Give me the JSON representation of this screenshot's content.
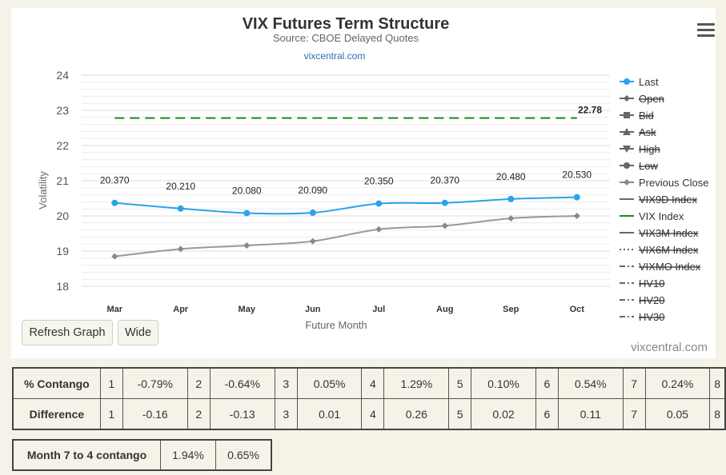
{
  "chart_data": {
    "type": "line",
    "title": "VIX Futures Term Structure",
    "subtitle": "Source: CBOE Delayed Quotes",
    "link": "vixcentral.com",
    "xlabel": "Future Month",
    "ylabel": "Volatility",
    "categories": [
      "Mar",
      "Apr",
      "May",
      "Jun",
      "Jul",
      "Aug",
      "Sep",
      "Oct"
    ],
    "ylim": [
      18,
      24
    ],
    "yticks": [
      "18",
      "19",
      "20",
      "21",
      "22",
      "23",
      "24"
    ],
    "series": [
      {
        "name": "Last",
        "color": "#2aa3e8",
        "values": [
          20.37,
          20.21,
          20.08,
          20.09,
          20.35,
          20.37,
          20.48,
          20.53
        ],
        "labels": [
          "20.370",
          "20.210",
          "20.080",
          "20.090",
          "20.350",
          "20.370",
          "20.480",
          "20.530"
        ]
      },
      {
        "name": "Previous Close",
        "color": "#999999",
        "values": [
          18.85,
          19.06,
          19.16,
          19.28,
          19.62,
          19.72,
          19.93,
          20.0
        ]
      },
      {
        "name": "VIX Index",
        "color": "#1a8a1a",
        "values": [
          22.78,
          22.78,
          22.78,
          22.78,
          22.78,
          22.78,
          22.78,
          22.78
        ],
        "end_label": "22.78"
      }
    ],
    "legend_position": "right",
    "legend": [
      {
        "label": "Last",
        "marker": "dot",
        "active": true
      },
      {
        "label": "Open",
        "marker": "diamond",
        "active": false
      },
      {
        "label": "Bid",
        "marker": "square",
        "active": false
      },
      {
        "label": "Ask",
        "marker": "triangle-up",
        "active": false
      },
      {
        "label": "High",
        "marker": "triangle-down",
        "active": false
      },
      {
        "label": "Low",
        "marker": "dot",
        "active": false
      },
      {
        "label": "Previous Close",
        "marker": "diamond",
        "active": true
      },
      {
        "label": "VIX9D Index",
        "marker": "line",
        "active": false
      },
      {
        "label": "VIX Index",
        "marker": "line",
        "active": true
      },
      {
        "label": "VIX3M Index",
        "marker": "line",
        "active": false
      },
      {
        "label": "VIX6M Index",
        "marker": "dotted",
        "active": false
      },
      {
        "label": "VIXMO Index",
        "marker": "dashdot",
        "active": false
      },
      {
        "label": "HV10",
        "marker": "dashdot",
        "active": false
      },
      {
        "label": "HV20",
        "marker": "dashdot",
        "active": false
      },
      {
        "label": "HV30",
        "marker": "dashdot",
        "active": false
      }
    ]
  },
  "buttons": {
    "refresh": "Refresh Graph",
    "wide": "Wide"
  },
  "credit": "vixcentral.com",
  "contango_table": {
    "rows": [
      {
        "label": "% Contango",
        "cells": [
          "1",
          "-0.79%",
          "2",
          "-0.64%",
          "3",
          "0.05%",
          "4",
          "1.29%",
          "5",
          "0.10%",
          "6",
          "0.54%",
          "7",
          "0.24%",
          "8"
        ]
      },
      {
        "label": "Difference",
        "cells": [
          "1",
          "-0.16",
          "2",
          "-0.13",
          "3",
          "0.01",
          "4",
          "0.26",
          "5",
          "0.02",
          "6",
          "0.11",
          "7",
          "0.05",
          "8"
        ]
      }
    ]
  },
  "month_table": {
    "label": "Month 7 to 4 contango",
    "values": [
      "1.94%",
      "0.65%"
    ]
  }
}
